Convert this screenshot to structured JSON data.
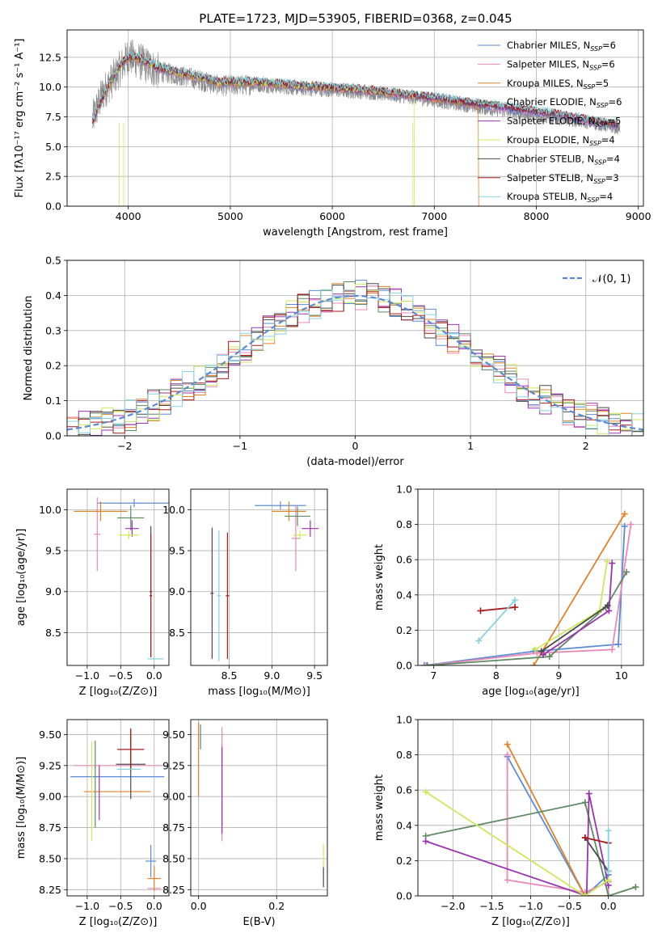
{
  "title": "PLATE=1723, MJD=53905, FIBERID=0368, z=0.045",
  "colors": {
    "series": [
      "#5b8bd6",
      "#e889b8",
      "#e08326",
      "#5f8a63",
      "#9a33b0",
      "#cbe95a",
      "#4a4a4a",
      "#aa1a1a",
      "#86d3df"
    ],
    "observed": "#888888",
    "grid": "#b0b0b0",
    "normal": "#5b8bd6"
  },
  "chart_data": [
    {
      "type": "line",
      "id": "spectrum",
      "xlabel": "wavelength [Angstrom, rest frame]",
      "ylabel": "Flux [fλ10⁻¹⁷ erg cm⁻² s⁻¹ A⁻¹]",
      "xlim": [
        3400,
        9050
      ],
      "ylim": [
        0,
        14.8
      ],
      "xticks": [
        4000,
        5000,
        6000,
        7000,
        8000,
        9000
      ],
      "yticks": [
        0.0,
        2.5,
        5.0,
        7.5,
        10.0,
        12.5
      ],
      "legend_position": "right",
      "legend": [
        "Chabrier MILES, N",
        "Salpeter MILES, N",
        "Kroupa MILES, N",
        "Chabrier ELODIE, N",
        "Salpeter ELODIE, N",
        "Kroupa ELODIE, N",
        "Chabrier STELIB, N",
        "Salpeter STELIB, N",
        "Kroupa STELIB, N"
      ],
      "legend_sub": "SSP",
      "legend_n": [
        "=6",
        "=6",
        "=5",
        "=6",
        "=5",
        "=4",
        "=4",
        "=3",
        "=4"
      ],
      "observed_trend": {
        "x": [
          3650,
          3750,
          3900,
          4000,
          4100,
          4300,
          4600,
          4900,
          5200,
          5600,
          6000,
          6400,
          6800,
          7200,
          7600,
          8000,
          8400,
          8800
        ],
        "y": [
          7.3,
          9.5,
          11.3,
          12.6,
          12.2,
          11.3,
          10.8,
          10.1,
          10.2,
          9.9,
          9.7,
          9.5,
          9.1,
          8.6,
          8.1,
          7.6,
          7.2,
          6.6
        ]
      },
      "model_trend": {
        "x": [
          3650,
          3700,
          3800,
          3900,
          4000,
          4100,
          4300,
          4600,
          4900,
          5300,
          5700,
          6100,
          6500,
          7000,
          7400,
          7800,
          8200,
          8500,
          8800
        ],
        "y": [
          7.0,
          8.2,
          10.0,
          11.6,
          12.5,
          12.4,
          11.6,
          11.0,
          10.4,
          10.4,
          10.1,
          9.9,
          9.6,
          9.1,
          8.6,
          8.2,
          7.7,
          7.2,
          6.8
        ]
      },
      "model_x_end": [
        8800,
        8800,
        7430,
        8800,
        8800,
        6800,
        8800,
        8800,
        8800
      ]
    },
    {
      "type": "bar",
      "id": "residual-histogram",
      "xlabel": "(data-model)/error",
      "ylabel": "Normed distribution",
      "xlim": [
        -2.5,
        2.5
      ],
      "ylim": [
        0,
        0.5
      ],
      "xticks": [
        -2,
        -1,
        0,
        1,
        2
      ],
      "yticks": [
        0.0,
        0.1,
        0.2,
        0.3,
        0.4,
        0.5
      ],
      "bin_edges_range": [
        -2.5,
        2.5
      ],
      "bins": 50,
      "reference": {
        "name": "𝒩(0, 1)",
        "mu": 0,
        "sigma": 1
      }
    },
    {
      "type": "scatter",
      "id": "age-vs-Z",
      "xlabel": "Z [log₁₀(Z/Z⊙)]",
      "ylabel": "age  [log₁₀(age/yr)]",
      "xlim": [
        -1.3,
        0.22
      ],
      "ylim": [
        8.1,
        10.25
      ],
      "xticks": [
        -1.0,
        -0.5,
        0.0
      ],
      "yticks": [
        8.5,
        9.0,
        9.5,
        10.0
      ],
      "points": [
        {
          "x": -0.3,
          "y": 10.08,
          "xerr": 0.55,
          "yerr": 0.05
        },
        {
          "x": -0.85,
          "y": 9.7,
          "xerr": 0.05,
          "yerr": 0.45
        },
        {
          "x": -0.8,
          "y": 9.98,
          "xerr": 0.4,
          "yerr": 0.12
        },
        {
          "x": -0.35,
          "y": 9.9,
          "xerr": 0.2,
          "yerr": 0.15
        },
        {
          "x": -0.33,
          "y": 9.77,
          "xerr": 0.1,
          "yerr": 0.1
        },
        {
          "x": -0.38,
          "y": 9.69,
          "xerr": 0.15,
          "yerr": 0.05
        },
        {
          "x": -0.05,
          "y": 9.0,
          "xerr": 0.02,
          "yerr": 0.8
        },
        {
          "x": -0.05,
          "y": 8.95,
          "xerr": 0.02,
          "yerr": 0.75
        },
        {
          "x": 0.02,
          "y": 8.18,
          "xerr": 0.12,
          "yerr": 0.0
        }
      ]
    },
    {
      "type": "scatter",
      "id": "age-vs-mass",
      "xlabel": "mass [log₁₀(M/M⊙)]",
      "ylabel": "",
      "xlim": [
        8.05,
        9.65
      ],
      "ylim": [
        8.1,
        10.25
      ],
      "xticks": [
        8.5,
        9.0,
        9.5
      ],
      "yticks": [
        8.5,
        9.0,
        9.5,
        10.0
      ],
      "points": [
        {
          "x": 9.1,
          "y": 10.05,
          "xerr": 0.3,
          "yerr": 0.05
        },
        {
          "x": 9.28,
          "y": 9.65,
          "xerr": 0.05,
          "yerr": 0.4
        },
        {
          "x": 9.2,
          "y": 9.98,
          "xerr": 0.2,
          "yerr": 0.12
        },
        {
          "x": 9.3,
          "y": 9.92,
          "xerr": 0.15,
          "yerr": 0.12
        },
        {
          "x": 9.45,
          "y": 9.77,
          "xerr": 0.1,
          "yerr": 0.1
        },
        {
          "x": 9.33,
          "y": 9.69,
          "xerr": 0.08,
          "yerr": 0.05
        },
        {
          "x": 8.3,
          "y": 8.98,
          "xerr": 0.02,
          "yerr": 0.8
        },
        {
          "x": 8.48,
          "y": 8.95,
          "xerr": 0.02,
          "yerr": 0.77
        },
        {
          "x": 8.38,
          "y": 8.95,
          "xerr": 0.02,
          "yerr": 0.8
        }
      ]
    },
    {
      "type": "line",
      "id": "mass-weight-vs-age",
      "xlabel": "age  [log₁₀(age/yr)]",
      "ylabel": "mass weight",
      "xlim": [
        6.75,
        10.35
      ],
      "ylim": [
        0,
        1.0
      ],
      "xticks": [
        7,
        8,
        9,
        10
      ],
      "yticks": [
        0.0,
        0.2,
        0.4,
        0.6,
        0.8,
        1.0
      ],
      "series": [
        {
          "x": [
            6.85,
            8.6,
            9.95,
            10.05
          ],
          "y": [
            0.0,
            0.08,
            0.12,
            0.79
          ]
        },
        {
          "x": [
            6.88,
            8.65,
            9.85,
            10.15
          ],
          "y": [
            0.0,
            0.07,
            0.09,
            0.8
          ]
        },
        {
          "x": [
            8.6,
            10.05
          ],
          "y": [
            0.0,
            0.86
          ]
        },
        {
          "x": [
            6.9,
            8.85,
            9.75,
            10.08
          ],
          "y": [
            0.0,
            0.05,
            0.33,
            0.53
          ]
        },
        {
          "x": [
            8.75,
            9.8,
            9.85
          ],
          "y": [
            0.06,
            0.31,
            0.58
          ]
        },
        {
          "x": [
            8.62,
            9.65,
            9.77
          ],
          "y": [
            0.09,
            0.31,
            0.59
          ]
        },
        {
          "x": [
            8.72,
            9.78
          ],
          "y": [
            0.08,
            0.34
          ]
        },
        {
          "x": [
            7.75,
            8.3
          ],
          "y": [
            0.31,
            0.33
          ]
        },
        {
          "x": [
            7.72,
            8.3
          ],
          "y": [
            0.14,
            0.37
          ]
        }
      ]
    },
    {
      "type": "scatter",
      "id": "mass-vs-Z",
      "xlabel": "Z [log₁₀(Z/Z⊙)]",
      "ylabel": "mass [log₁₀(M/M⊙)]",
      "xlim": [
        -1.3,
        0.22
      ],
      "ylim": [
        8.2,
        9.62
      ],
      "xticks": [
        -1.0,
        -0.5,
        0.0
      ],
      "yticks": [
        8.25,
        8.5,
        8.75,
        9.0,
        9.25,
        9.5
      ],
      "points": [
        {
          "x": -0.55,
          "y": 9.16,
          "xerr": 0.7,
          "yerr": 0.0
        },
        {
          "x": -0.55,
          "y": 9.25,
          "xerr": 0.65,
          "yerr": 0.0
        },
        {
          "x": -0.55,
          "y": 9.04,
          "xerr": 0.5,
          "yerr": 0.0
        },
        {
          "x": -0.88,
          "y": 9.1,
          "xerr": 0.0,
          "yerr": 0.35
        },
        {
          "x": -0.82,
          "y": 9.03,
          "xerr": 0.0,
          "yerr": 0.22
        },
        {
          "x": -0.93,
          "y": 9.04,
          "xerr": 0.0,
          "yerr": 0.4
        },
        {
          "x": -0.35,
          "y": 9.26,
          "xerr": 0.22,
          "yerr": 0.28
        },
        {
          "x": -0.35,
          "y": 9.38,
          "xerr": 0.2,
          "yerr": 0.17
        },
        {
          "x": -0.38,
          "y": 9.22,
          "xerr": 0.18,
          "yerr": 0.0
        },
        {
          "x": -0.05,
          "y": 8.48,
          "xerr": 0.08,
          "yerr": 0.13
        },
        {
          "x": 0.0,
          "y": 8.26,
          "xerr": 0.1,
          "yerr": 0.0
        },
        {
          "x": 0.0,
          "y": 8.34,
          "xerr": 0.1,
          "yerr": 0.1
        }
      ]
    },
    {
      "type": "scatter",
      "id": "mass-vs-EBV",
      "xlabel": "E(B-V)",
      "ylabel": "",
      "xlim": [
        -0.02,
        0.33
      ],
      "ylim": [
        8.2,
        9.62
      ],
      "xticks": [
        0.0,
        0.2
      ],
      "yticks": [
        8.25,
        8.5,
        8.75,
        9.0,
        9.25,
        9.5
      ],
      "points": [
        {
          "x": 0.06,
          "y": 9.1,
          "xerr": 0.0,
          "yerr": 0.33
        },
        {
          "x": 0.06,
          "y": 9.1,
          "xerr": 0.0,
          "yerr": 0.46
        },
        {
          "x": 0.0,
          "y": 9.3,
          "xerr": 0.0,
          "yerr": 0.3
        },
        {
          "x": 0.005,
          "y": 9.48,
          "xerr": 0.0,
          "yerr": 0.1
        },
        {
          "x": 0.06,
          "y": 9.05,
          "xerr": 0.0,
          "yerr": 0.35
        },
        {
          "x": 0.32,
          "y": 8.5,
          "xerr": 0.0,
          "yerr": 0.12
        },
        {
          "x": 0.32,
          "y": 8.35,
          "xerr": 0.0,
          "yerr": 0.08
        }
      ]
    },
    {
      "type": "line",
      "id": "mass-weight-vs-Z",
      "xlabel": "Z [log₁₀(Z/Z⊙)]",
      "ylabel": "mass weight",
      "xlim": [
        -2.45,
        0.45
      ],
      "ylim": [
        0,
        1.0
      ],
      "xticks": [
        -2.0,
        -1.5,
        -1.0,
        -0.5,
        0.0
      ],
      "yticks": [
        0.0,
        0.2,
        0.4,
        0.6,
        0.8,
        1.0
      ],
      "series": [
        {
          "x": [
            -1.3,
            -0.3,
            0.0
          ],
          "y": [
            0.79,
            0.0,
            0.12
          ]
        },
        {
          "x": [
            -1.3,
            -1.3,
            -0.3,
            0.0,
            0.0
          ],
          "y": [
            0.8,
            0.09,
            0.02,
            0.08,
            0.0
          ]
        },
        {
          "x": [
            -1.3,
            -0.3,
            0.0
          ],
          "y": [
            0.86,
            0.0,
            0.0
          ]
        },
        {
          "x": [
            -2.35,
            -0.3,
            0.0,
            0.35
          ],
          "y": [
            0.34,
            0.53,
            0.0,
            0.05
          ]
        },
        {
          "x": [
            -2.35,
            -0.28,
            -0.25,
            0.0
          ],
          "y": [
            0.31,
            0.0,
            0.58,
            0.06
          ]
        },
        {
          "x": [
            -2.35,
            -0.3,
            0.0
          ],
          "y": [
            0.59,
            0.0,
            0.09
          ]
        },
        {
          "x": [
            -0.3,
            0.0
          ],
          "y": [
            0.33,
            0.14
          ]
        },
        {
          "x": [
            -0.3,
            0.0
          ],
          "y": [
            0.33,
            0.3
          ]
        },
        {
          "x": [
            0.0,
            0.0
          ],
          "y": [
            0.37,
            0.14
          ]
        }
      ]
    }
  ]
}
